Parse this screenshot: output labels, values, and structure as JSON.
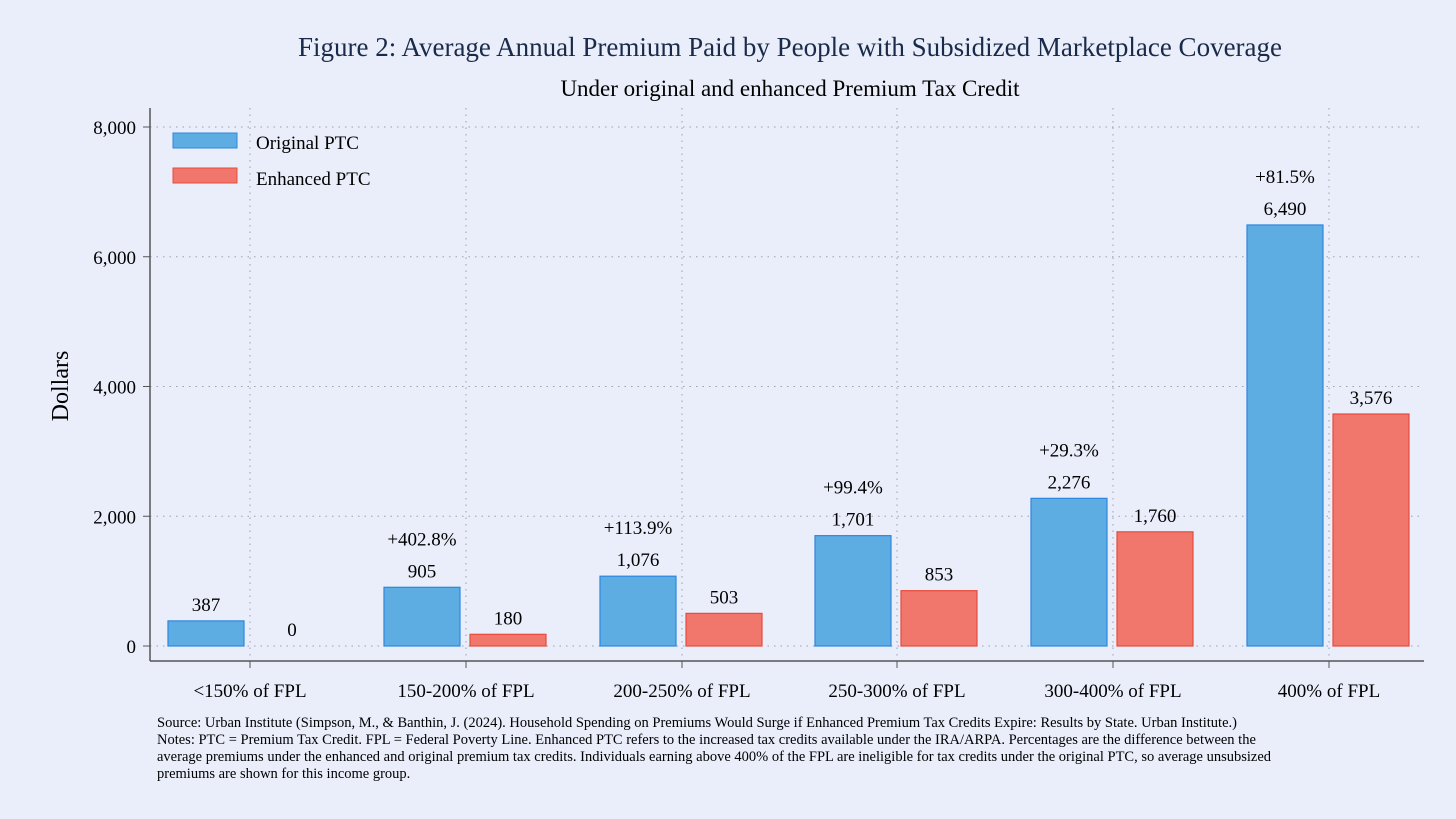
{
  "chart_data": {
    "type": "bar",
    "title": "Figure 2: Average Annual Premium Paid by People with Subsidized Marketplace Coverage",
    "subtitle": "Under original and enhanced Premium Tax Credit",
    "xlabel": "",
    "ylabel": "Dollars",
    "ylim": [
      0,
      8000
    ],
    "yticks": [
      0,
      2000,
      4000,
      6000,
      8000
    ],
    "ytick_labels": [
      "0",
      "2,000",
      "4,000",
      "6,000",
      "8,000"
    ],
    "grid": true,
    "legend_position": "top-left",
    "categories": [
      "<150% of FPL",
      "150-200% of FPL",
      "200-250% of FPL",
      "250-300% of FPL",
      "300-400% of FPL",
      "400% of FPL"
    ],
    "series": [
      {
        "name": "Original PTC",
        "color": "#5dade2",
        "border": "#2e86de",
        "values": [
          387,
          905,
          1076,
          1701,
          2276,
          6490
        ],
        "labels": [
          "387",
          "905",
          "1,076",
          "1,701",
          "2,276",
          "6,490"
        ]
      },
      {
        "name": "Enhanced PTC",
        "color": "#f1766c",
        "border": "#e74c3c",
        "values": [
          0,
          180,
          503,
          853,
          1760,
          3576
        ],
        "labels": [
          "0",
          "180",
          "503",
          "853",
          "1,760",
          "3,576"
        ]
      }
    ],
    "pct_labels": [
      "",
      "+402.8%",
      "+113.9%",
      "+99.4%",
      "+29.3%",
      "+81.5%"
    ]
  },
  "notes": {
    "source": "Source: Urban Institute (Simpson, M., & Banthin, J. (2024). Household Spending on Premiums Would Surge if Enhanced Premium Tax Credits Expire: Results by State. Urban Institute.)",
    "line1": "Notes: PTC = Premium Tax Credit. FPL = Federal Poverty Line. Enhanced PTC refers to the increased tax credits available under the IRA/ARPA. Percentages are the difference between the",
    "line2": "average premiums under the enhanced and original premium tax credits. Individuals earning above 400% of the FPL are ineligible for tax credits under the original PTC, so average unsubsized",
    "line3": "premiums are shown for this income group."
  }
}
